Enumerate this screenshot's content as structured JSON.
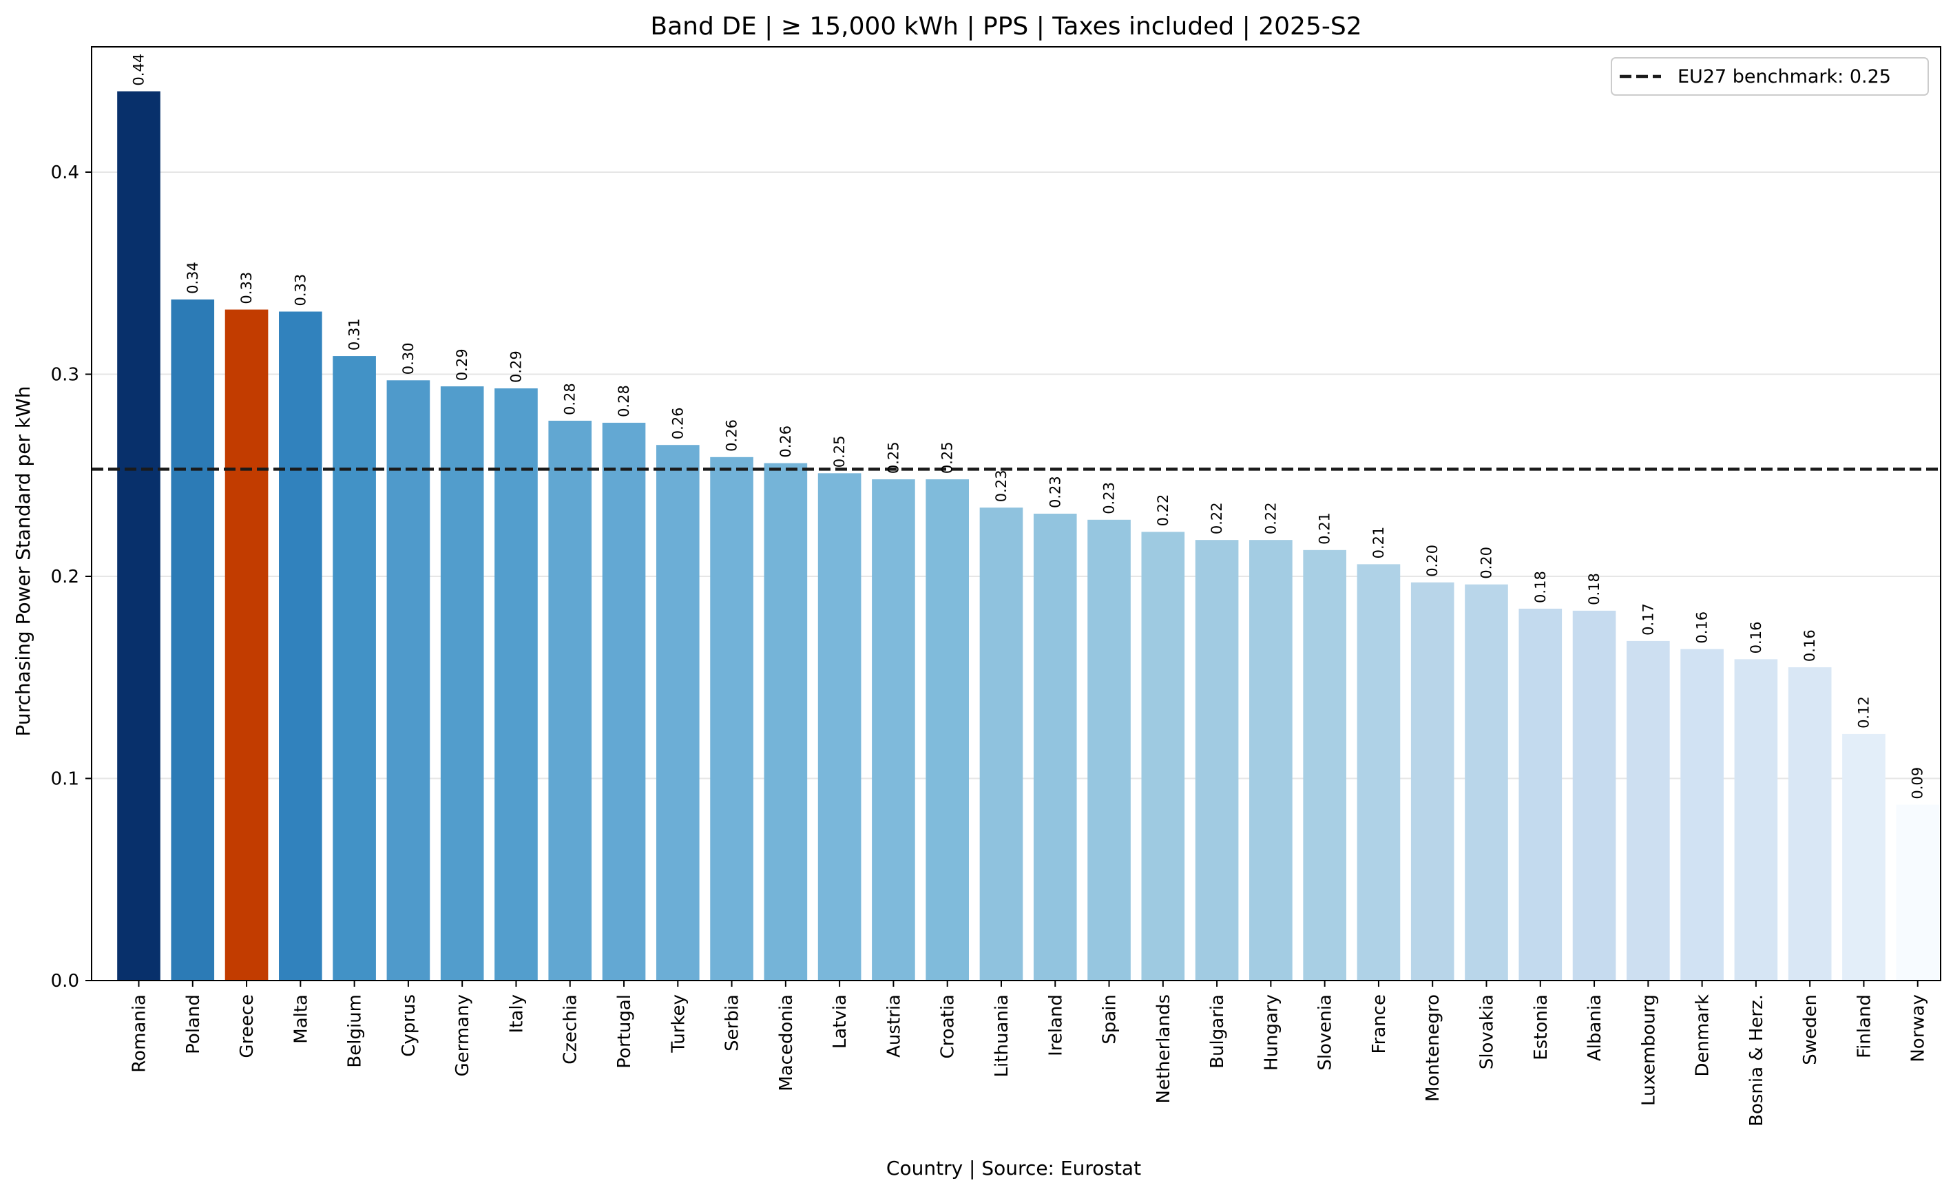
{
  "chart_data": {
    "type": "bar",
    "title": "Band DE | ≥ 15,000 kWh | PPS | Taxes included | 2025-S2",
    "xlabel": "Country | Source: Eurostat",
    "ylabel": "Purchasing Power Standard per kWh",
    "ylim": [
      0,
      0.462
    ],
    "yticks": [
      0.0,
      0.1,
      0.2,
      0.3,
      0.4
    ],
    "ytick_labels": [
      "0.0",
      "0.1",
      "0.2",
      "0.3",
      "0.4"
    ],
    "grid": "horizontal",
    "categories": [
      "Romania",
      "Poland",
      "Greece",
      "Malta",
      "Belgium",
      "Cyprus",
      "Germany",
      "Italy",
      "Czechia",
      "Portugal",
      "Turkey",
      "Serbia",
      "Macedonia",
      "Latvia",
      "Austria",
      "Croatia",
      "Lithuania",
      "Ireland",
      "Spain",
      "Netherlands",
      "Bulgaria",
      "Hungary",
      "Slovenia",
      "France",
      "Montenegro",
      "Slovakia",
      "Estonia",
      "Albania",
      "Luxembourg",
      "Denmark",
      "Bosnia & Herz.",
      "Sweden",
      "Finland",
      "Norway"
    ],
    "values": [
      0.44,
      0.337,
      0.332,
      0.331,
      0.309,
      0.297,
      0.294,
      0.293,
      0.277,
      0.276,
      0.265,
      0.259,
      0.256,
      0.251,
      0.248,
      0.248,
      0.234,
      0.231,
      0.228,
      0.222,
      0.218,
      0.218,
      0.213,
      0.206,
      0.197,
      0.196,
      0.184,
      0.183,
      0.168,
      0.164,
      0.159,
      0.155,
      0.122,
      0.087
    ],
    "value_labels": [
      "0.44",
      "0.34",
      "0.33",
      "0.33",
      "0.31",
      "0.30",
      "0.29",
      "0.29",
      "0.28",
      "0.28",
      "0.26",
      "0.26",
      "0.26",
      "0.25",
      "0.25",
      "0.25",
      "0.23",
      "0.23",
      "0.23",
      "0.22",
      "0.22",
      "0.22",
      "0.21",
      "0.21",
      "0.20",
      "0.20",
      "0.18",
      "0.18",
      "0.17",
      "0.16",
      "0.16",
      "0.16",
      "0.12",
      "0.09"
    ],
    "colors": [
      "#08306b",
      "#2c7bb6",
      "#c23c00",
      "#3182bd",
      "#4292c6",
      "#4f9acb",
      "#529dcc",
      "#539ecd",
      "#61a7d2",
      "#63a8d3",
      "#6caed6",
      "#72b2d8",
      "#75b4d8",
      "#7ab7da",
      "#7fbadb",
      "#80bbdb",
      "#8fc2de",
      "#92c4df",
      "#96c6e0",
      "#9ecae1",
      "#a1cbe2",
      "#a3cce3",
      "#a8cfe4",
      "#afd2e7",
      "#b8d5e9",
      "#b9d6ea",
      "#c3daee",
      "#c6dbef",
      "#cddff1",
      "#d1e2f3",
      "#d6e5f4",
      "#d9e7f5",
      "#e3eef9",
      "#f7fbff"
    ],
    "highlight_color": "#c23c00",
    "benchmark": {
      "value": 0.253,
      "label": "EU27 benchmark: 0.25",
      "style": "dashed",
      "color": "#1a1a1a"
    },
    "legend_placement": "top-right"
  }
}
